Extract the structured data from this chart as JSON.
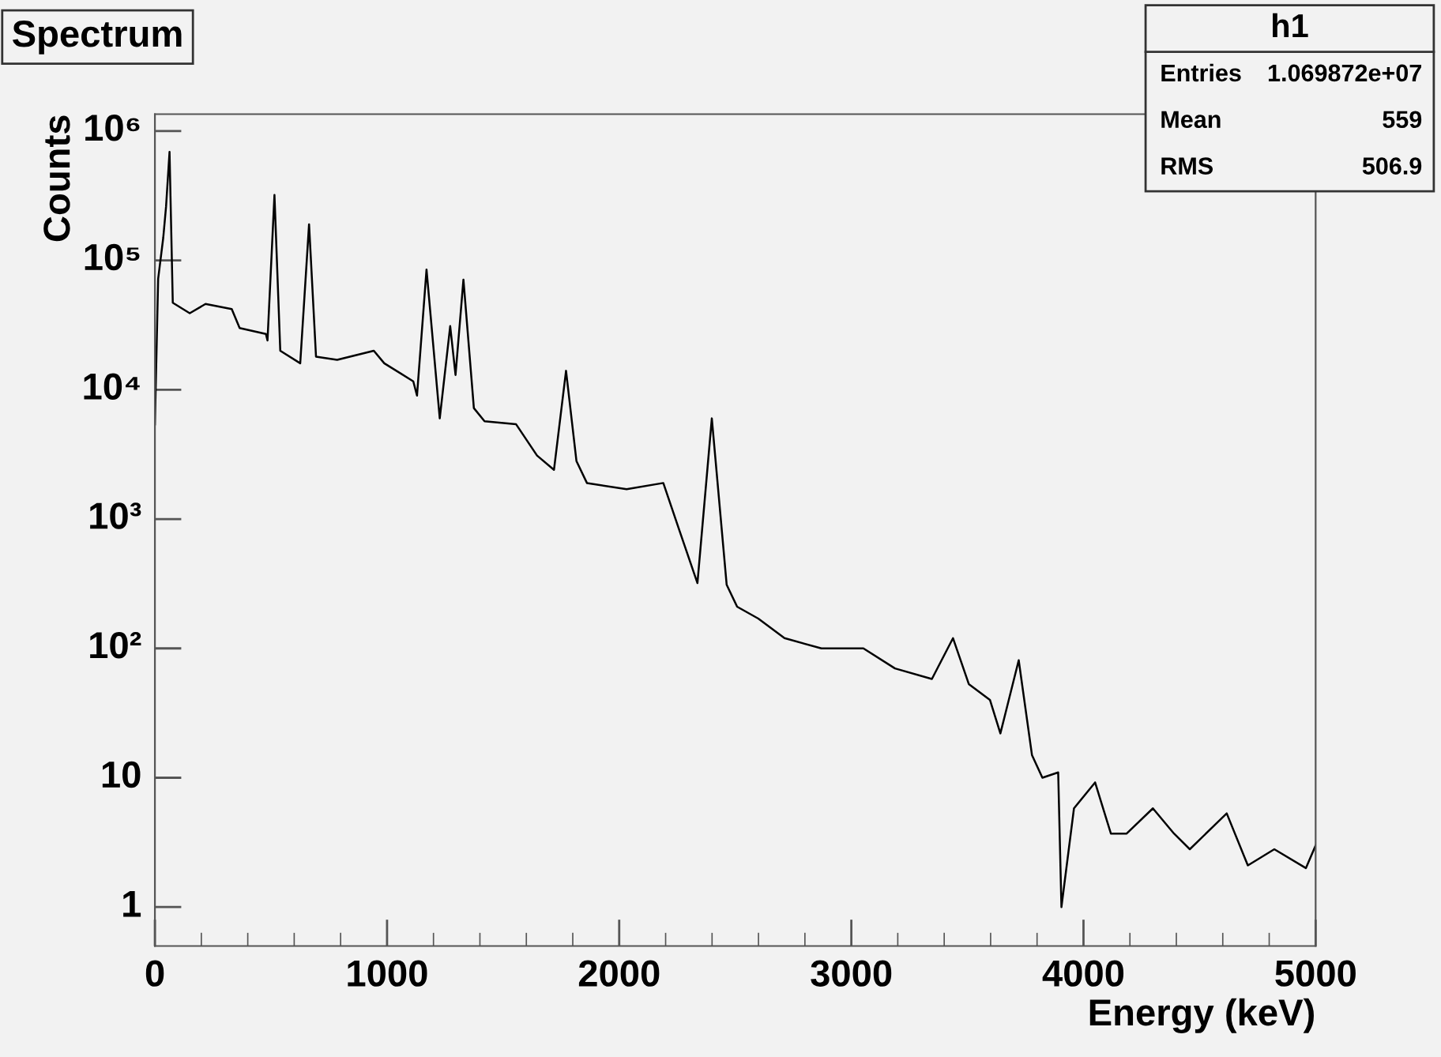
{
  "chart_data": {
    "type": "line",
    "title": "Spectrum",
    "xlabel": "Energy (keV)",
    "ylabel": "Counts",
    "annotations": [
      "h1",
      "Entries",
      "1.069872e+07",
      "Mean",
      "559",
      "RMS",
      "506.9"
    ],
    "log": "y",
    "grid": false,
    "legend": false,
    "color": "#000000",
    "marker": "none",
    "line_style": "solid",
    "xlim": [
      0,
      5000
    ],
    "xticks": [
      0,
      1000,
      2000,
      3000,
      4000,
      5000
    ],
    "ylim": [
      0.5,
      1350000
    ],
    "yticks": [
      1,
      10,
      {
        "value": 100,
        "label": "10²"
      },
      {
        "value": 1000,
        "label": "10³"
      },
      {
        "value": 10000,
        "label": "10⁴"
      },
      {
        "value": 100000,
        "label": "10⁵"
      },
      {
        "value": 1000000,
        "label": "10⁶"
      }
    ],
    "x": [
      0,
      14,
      36,
      48,
      63,
      77,
      150,
      218,
      331,
      365,
      478,
      485,
      515,
      540,
      626,
      664,
      694,
      785,
      943,
      988,
      1113,
      1129,
      1170,
      1227,
      1272,
      1295,
      1329,
      1374,
      1420,
      1556,
      1646,
      1719,
      1771,
      1816,
      1861,
      2032,
      2190,
      2259,
      2337,
      2399,
      2463,
      2508,
      2599,
      2712,
      2871,
      3052,
      3188,
      3347,
      3438,
      3506,
      3597,
      3642,
      3721,
      3778,
      3823,
      3891,
      3905,
      3959,
      4050,
      4118,
      4186,
      4299,
      4390,
      4458,
      4617,
      4708,
      4822,
      4958,
      5000
    ],
    "values": [
      5400,
      72000,
      150000,
      260000,
      690000,
      47000,
      39000,
      46000,
      42000,
      30000,
      27000,
      24000,
      320000,
      20000,
      16000,
      190000,
      18000,
      17000,
      20000,
      16000,
      11600,
      9000,
      85000,
      6000,
      31000,
      13000,
      71000,
      7200,
      5700,
      5400,
      3100,
      2400,
      14000,
      2800,
      1900,
      1700,
      1900,
      820,
      320,
      6000,
      310,
      210,
      170,
      120,
      100,
      100,
      70,
      58,
      120,
      53,
      40,
      22,
      81,
      15,
      10,
      11,
      1,
      5.8,
      9.2,
      3.7,
      3.7,
      5.8,
      3.7,
      2.8,
      5.3,
      2.1,
      2.8,
      2.0,
      3
    ]
  }
}
